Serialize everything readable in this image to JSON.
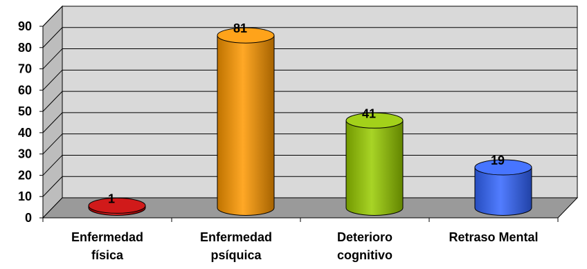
{
  "chart_data": {
    "type": "bar",
    "style": "3d-cylinder",
    "categories": [
      [
        "Enfermedad",
        "física"
      ],
      [
        "Enfermedad",
        "psíquica"
      ],
      [
        "Deterioro",
        "cognitivo"
      ],
      [
        "Retraso Mental"
      ]
    ],
    "values": [
      1,
      81,
      41,
      19
    ],
    "data_labels": [
      "1",
      "81",
      "41",
      "19"
    ],
    "ylim": [
      0,
      90
    ],
    "yticks": [
      0,
      10,
      20,
      30,
      40,
      50,
      60,
      70,
      80,
      90
    ],
    "grid": true,
    "legend": "none",
    "colors": [
      "#cc0000",
      "#ff9900",
      "#99cc00",
      "#3366ff"
    ],
    "wall_color": "#d9d9d9",
    "floor_color": "#9a9a9a"
  }
}
